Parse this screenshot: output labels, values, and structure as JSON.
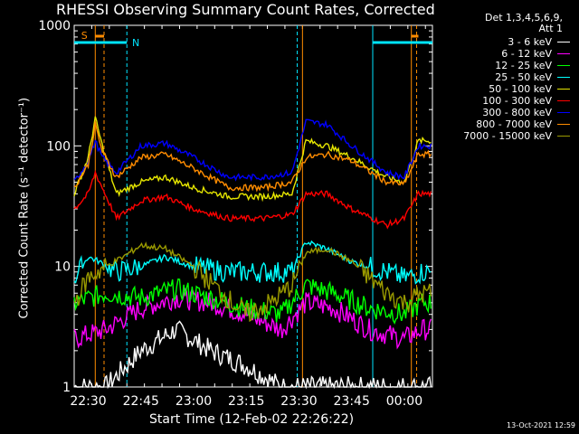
{
  "header": {
    "title": "RHESSI Observing Summary Count Rates, Corrected",
    "detectors_line1": "Det 1,3,4,5,6,9,",
    "detectors_line2": "Att 1",
    "timestamp": "13-Oct-2021 12:59"
  },
  "chart_data": {
    "type": "line",
    "title": "RHESSI Observing Summary Count Rates, Corrected",
    "xlabel": "Start Time (12-Feb-02 22:26:22)",
    "ylabel": "Corrected Count Rate (s⁻¹ detector⁻¹)",
    "y_scale": "log",
    "ylim": [
      1,
      1000
    ],
    "xlim_minutes": [
      -4,
      98
    ],
    "x_tick_labels": [
      "22:30",
      "22:45",
      "23:00",
      "23:15",
      "23:30",
      "23:45",
      "00:00"
    ],
    "x_tick_minutes": [
      0,
      15,
      30,
      45,
      60,
      75,
      90
    ],
    "y_tick_labels": [
      "1",
      "10",
      "100",
      "1000"
    ],
    "y_tick_values": [
      1,
      10,
      100,
      1000
    ],
    "legend_position": "right",
    "x_unit": "minutes after 22:30",
    "markers": [
      {
        "label": "S",
        "color": "#ff8c00"
      },
      {
        "label": "N",
        "color": "#00e5ff"
      }
    ],
    "series": [
      {
        "name": "3 - 6 keV",
        "color": "#ffffff"
      },
      {
        "name": "6 - 12 keV",
        "color": "#ff00ff"
      },
      {
        "name": "12 - 25 keV",
        "color": "#00ff00"
      },
      {
        "name": "25 - 50 keV",
        "color": "#00ffff"
      },
      {
        "name": "50 - 100 keV",
        "color": "#e6e600"
      },
      {
        "name": "100 - 300 keV",
        "color": "#ff0000"
      },
      {
        "name": "300 - 800 keV",
        "color": "#0000ff"
      },
      {
        "name": "800 - 7000 keV",
        "color": "#ff8c00"
      },
      {
        "name": "7000 - 15000 keV",
        "color": "#999900"
      }
    ],
    "profiles": [
      {
        "series": "3 - 6 keV",
        "points": [
          [
            -4,
            1
          ],
          [
            5,
            1
          ],
          [
            15,
            2
          ],
          [
            25,
            3
          ],
          [
            35,
            2
          ],
          [
            45,
            1.5
          ],
          [
            55,
            1
          ],
          [
            65,
            1
          ],
          [
            75,
            1
          ],
          [
            85,
            1
          ],
          [
            95,
            1
          ]
        ]
      },
      {
        "series": "6 - 12 keV",
        "points": [
          [
            -4,
            2.5
          ],
          [
            5,
            3
          ],
          [
            15,
            4.5
          ],
          [
            25,
            5.5
          ],
          [
            35,
            5
          ],
          [
            45,
            4
          ],
          [
            55,
            3
          ],
          [
            62,
            5
          ],
          [
            70,
            4.5
          ],
          [
            80,
            3
          ],
          [
            90,
            2.5
          ],
          [
            95,
            3
          ]
        ]
      },
      {
        "series": "12 - 25 keV",
        "points": [
          [
            -4,
            5
          ],
          [
            5,
            6
          ],
          [
            15,
            5.5
          ],
          [
            25,
            6.5
          ],
          [
            35,
            5.5
          ],
          [
            45,
            4.5
          ],
          [
            55,
            4
          ],
          [
            62,
            7
          ],
          [
            70,
            6
          ],
          [
            80,
            4.5
          ],
          [
            90,
            4
          ],
          [
            95,
            5
          ]
        ]
      },
      {
        "series": "25 - 50 keV",
        "points": [
          [
            -4,
            8
          ],
          [
            0,
            12
          ],
          [
            3,
            11
          ],
          [
            8,
            9
          ],
          [
            15,
            10
          ],
          [
            22,
            12
          ],
          [
            30,
            10
          ],
          [
            40,
            9
          ],
          [
            50,
            9
          ],
          [
            58,
            9
          ],
          [
            62,
            16
          ],
          [
            68,
            14
          ],
          [
            75,
            11
          ],
          [
            85,
            9
          ],
          [
            90,
            8
          ],
          [
            95,
            9
          ]
        ]
      },
      {
        "series": "50 - 100 keV",
        "points": [
          [
            -4,
            40
          ],
          [
            0,
            80
          ],
          [
            2,
            170
          ],
          [
            4,
            100
          ],
          [
            8,
            40
          ],
          [
            15,
            50
          ],
          [
            22,
            55
          ],
          [
            30,
            45
          ],
          [
            40,
            38
          ],
          [
            50,
            38
          ],
          [
            58,
            40
          ],
          [
            62,
            110
          ],
          [
            68,
            100
          ],
          [
            75,
            80
          ],
          [
            85,
            55
          ],
          [
            90,
            50
          ],
          [
            94,
            110
          ]
        ]
      },
      {
        "series": "100 - 300 keV",
        "points": [
          [
            -4,
            30
          ],
          [
            0,
            40
          ],
          [
            2,
            60
          ],
          [
            4,
            45
          ],
          [
            8,
            25
          ],
          [
            15,
            35
          ],
          [
            22,
            38
          ],
          [
            30,
            30
          ],
          [
            40,
            25
          ],
          [
            50,
            25
          ],
          [
            58,
            27
          ],
          [
            62,
            40
          ],
          [
            68,
            40
          ],
          [
            75,
            30
          ],
          [
            85,
            22
          ],
          [
            90,
            25
          ],
          [
            94,
            40
          ]
        ]
      },
      {
        "series": "300 - 800 keV",
        "points": [
          [
            -4,
            50
          ],
          [
            0,
            75
          ],
          [
            2,
            110
          ],
          [
            4,
            80
          ],
          [
            8,
            60
          ],
          [
            15,
            100
          ],
          [
            22,
            105
          ],
          [
            30,
            80
          ],
          [
            40,
            55
          ],
          [
            50,
            55
          ],
          [
            58,
            60
          ],
          [
            62,
            160
          ],
          [
            68,
            150
          ],
          [
            75,
            100
          ],
          [
            85,
            60
          ],
          [
            90,
            55
          ],
          [
            94,
            100
          ]
        ]
      },
      {
        "series": "800 - 7000 keV",
        "points": [
          [
            -4,
            45
          ],
          [
            0,
            70
          ],
          [
            2,
            150
          ],
          [
            4,
            90
          ],
          [
            8,
            55
          ],
          [
            15,
            80
          ],
          [
            22,
            85
          ],
          [
            30,
            65
          ],
          [
            40,
            45
          ],
          [
            50,
            45
          ],
          [
            58,
            50
          ],
          [
            62,
            80
          ],
          [
            68,
            85
          ],
          [
            75,
            75
          ],
          [
            85,
            50
          ],
          [
            90,
            48
          ],
          [
            94,
            85
          ]
        ]
      },
      {
        "series": "7000 - 15000 keV",
        "points": [
          [
            -4,
            5
          ],
          [
            0,
            8
          ],
          [
            5,
            10
          ],
          [
            10,
            12
          ],
          [
            15,
            15
          ],
          [
            22,
            14
          ],
          [
            30,
            10
          ],
          [
            38,
            6
          ],
          [
            45,
            4
          ],
          [
            52,
            5
          ],
          [
            58,
            7
          ],
          [
            62,
            13
          ],
          [
            68,
            14
          ],
          [
            75,
            11
          ],
          [
            85,
            6
          ],
          [
            90,
            5
          ],
          [
            95,
            6
          ]
        ]
      }
    ]
  }
}
